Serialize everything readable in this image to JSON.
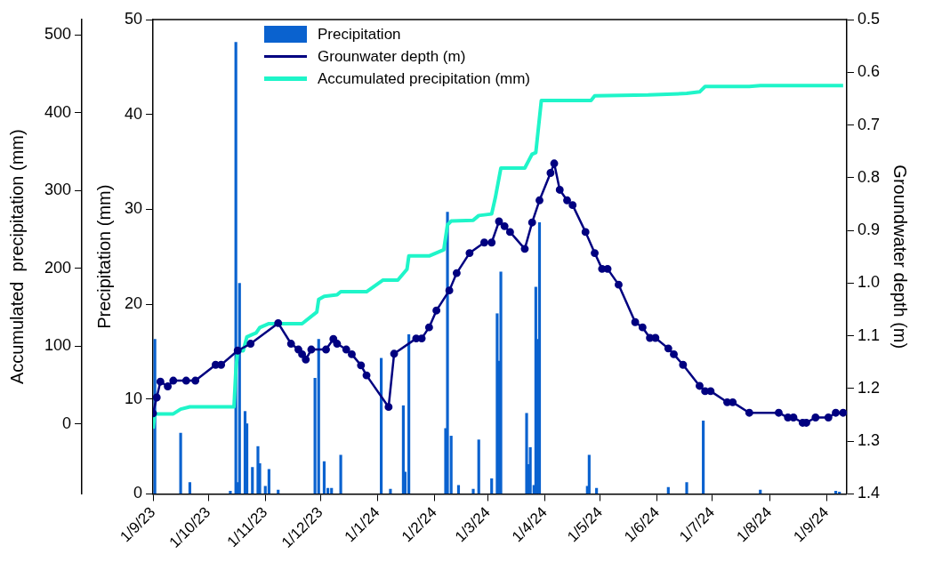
{
  "chart_data": {
    "type": "bar",
    "ylabel": "Precipitation (mm)",
    "y2label": "Groundwater depth (m)",
    "y3label": "Accumulated  precipitation (mm)",
    "xlim": [
      "2023-09-01",
      "2024-09-12"
    ],
    "xticks": [
      {
        "value": "2023-09-01",
        "label": "1/9/23"
      },
      {
        "value": "2023-10-01",
        "label": "1/10/23"
      },
      {
        "value": "2023-11-01",
        "label": "1/11/23"
      },
      {
        "value": "2023-12-01",
        "label": "1/12/23"
      },
      {
        "value": "2024-01-01",
        "label": "1/1/24"
      },
      {
        "value": "2024-02-01",
        "label": "1/2/24"
      },
      {
        "value": "2024-03-01",
        "label": "1/3/24"
      },
      {
        "value": "2024-04-01",
        "label": "1/4/24"
      },
      {
        "value": "2024-05-01",
        "label": "1/5/24"
      },
      {
        "value": "2024-06-01",
        "label": "1/6/24"
      },
      {
        "value": "2024-07-01",
        "label": "1/7/24"
      },
      {
        "value": "2024-08-01",
        "label": "1/8/24"
      },
      {
        "value": "2024-09-01",
        "label": "1/9/24"
      }
    ],
    "ylim": [
      0,
      50
    ],
    "yticks": [
      0,
      10,
      20,
      30,
      40,
      50
    ],
    "y2lim": [
      1.4,
      0.5
    ],
    "y2ticks": [
      {
        "value": 0.5,
        "label": "0.5"
      },
      {
        "value": 0.6,
        "label": "0.6"
      },
      {
        "value": 0.7,
        "label": "0.7"
      },
      {
        "value": 0.8,
        "label": "0.8"
      },
      {
        "value": 0.9,
        "label": "0.9"
      },
      {
        "value": 1,
        "label": "1.0"
      },
      {
        "value": 1.1,
        "label": "1.1"
      },
      {
        "value": 1.2,
        "label": "1.2"
      },
      {
        "value": 1.3,
        "label": "1.3"
      },
      {
        "value": 1.4,
        "label": "1.4"
      }
    ],
    "y3lim": [
      -90,
      520
    ],
    "y3ticks": [
      0,
      100,
      200,
      300,
      400,
      500
    ],
    "grid": false,
    "legend": "top left",
    "series": [
      {
        "name": "Precipitation",
        "color": "#0a62cf",
        "x": [
          "2023-09-02",
          "2023-09-16",
          "2023-09-21",
          "2023-10-13",
          "2023-10-16",
          "2023-10-17",
          "2023-10-18",
          "2023-10-21",
          "2023-10-22",
          "2023-10-25",
          "2023-10-28",
          "2023-10-29",
          "2023-11-01",
          "2023-11-03",
          "2023-11-08",
          "2023-11-28",
          "2023-11-30",
          "2023-12-03",
          "2023-12-05",
          "2023-12-07",
          "2023-12-12",
          "2024-01-03",
          "2024-01-08",
          "2024-01-15",
          "2024-01-16",
          "2024-01-18",
          "2024-02-07",
          "2024-02-08",
          "2024-02-10",
          "2024-02-14",
          "2024-02-22",
          "2024-02-25",
          "2024-03-03",
          "2024-03-06",
          "2024-03-07",
          "2024-03-08",
          "2024-03-22",
          "2024-03-23",
          "2024-03-24",
          "2024-03-26",
          "2024-03-27",
          "2024-03-28",
          "2024-03-29",
          "2024-04-24",
          "2024-04-25",
          "2024-04-29",
          "2024-06-07",
          "2024-06-17",
          "2024-06-26",
          "2024-07-27",
          "2024-09-06",
          "2024-09-08"
        ],
        "values": [
          16.3,
          6.4,
          1.2,
          0.3,
          47.6,
          1.2,
          22.2,
          8.7,
          7.4,
          2.8,
          5.0,
          3.2,
          0.8,
          2.6,
          0.4,
          12.2,
          16.3,
          3.4,
          0.6,
          0.6,
          4.1,
          14.3,
          0.5,
          9.3,
          2.3,
          16.8,
          6.9,
          29.7,
          6.1,
          0.9,
          0.5,
          5.7,
          1.6,
          19.0,
          14.0,
          23.4,
          8.5,
          3.1,
          4.9,
          0.9,
          21.8,
          16.3,
          28.6,
          0.8,
          4.1,
          0.6,
          0.7,
          1.2,
          7.7,
          0.4,
          0.3,
          0.2
        ]
      },
      {
        "name": "Grounwater depth (m)",
        "type": "line",
        "axis": "y2",
        "color": "#000080",
        "marker": "circle",
        "x": [
          "2023-09-01",
          "2023-09-03",
          "2023-09-05",
          "2023-09-09",
          "2023-09-12",
          "2023-09-19",
          "2023-09-24",
          "2023-10-05",
          "2023-10-08",
          "2023-10-17",
          "2023-10-24",
          "2023-11-08",
          "2023-11-15",
          "2023-11-19",
          "2023-11-21",
          "2023-11-23",
          "2023-11-26",
          "2023-12-04",
          "2023-12-08",
          "2023-12-10",
          "2023-12-15",
          "2023-12-18",
          "2023-12-23",
          "2023-12-26",
          "2024-01-07",
          "2024-01-10",
          "2024-01-22",
          "2024-01-25",
          "2024-01-29",
          "2024-02-02",
          "2024-02-09",
          "2024-02-13",
          "2024-02-20",
          "2024-02-28",
          "2024-03-03",
          "2024-03-07",
          "2024-03-10",
          "2024-03-13",
          "2024-03-21",
          "2024-03-25",
          "2024-03-29",
          "2024-04-04",
          "2024-04-06",
          "2024-04-09",
          "2024-04-13",
          "2024-04-16",
          "2024-04-23",
          "2024-04-28",
          "2024-05-02",
          "2024-05-05",
          "2024-05-11",
          "2024-05-20",
          "2024-05-24",
          "2024-05-28",
          "2024-05-31",
          "2024-06-07",
          "2024-06-10",
          "2024-06-15",
          "2024-06-24",
          "2024-06-27",
          "2024-06-30",
          "2024-07-09",
          "2024-07-12",
          "2024-07-21",
          "2024-08-06",
          "2024-08-11",
          "2024-08-14",
          "2024-08-19",
          "2024-08-21",
          "2024-08-26",
          "2024-09-02",
          "2024-09-06",
          "2024-09-10"
        ],
        "values": [
          1.247,
          1.217,
          1.187,
          1.196,
          1.185,
          1.185,
          1.185,
          1.155,
          1.155,
          1.128,
          1.115,
          1.076,
          1.115,
          1.126,
          1.135,
          1.145,
          1.126,
          1.126,
          1.106,
          1.115,
          1.126,
          1.135,
          1.156,
          1.175,
          1.235,
          1.134,
          1.105,
          1.105,
          1.084,
          1.052,
          1.014,
          0.981,
          0.943,
          0.923,
          0.923,
          0.883,
          0.892,
          0.903,
          0.935,
          0.885,
          0.843,
          0.791,
          0.773,
          0.823,
          0.843,
          0.852,
          0.903,
          0.943,
          0.973,
          0.973,
          1.003,
          1.074,
          1.084,
          1.104,
          1.104,
          1.124,
          1.135,
          1.155,
          1.195,
          1.205,
          1.205,
          1.226,
          1.226,
          1.246,
          1.246,
          1.255,
          1.255,
          1.265,
          1.265,
          1.255,
          1.255,
          1.246,
          1.246
        ]
      },
      {
        "name": "Accumulated precipitation (mm)",
        "type": "line",
        "axis": "y3",
        "color": "#1ff5c9",
        "marker": "none",
        "x": [
          "2023-09-01",
          "2023-09-02",
          "2023-09-12",
          "2023-09-16",
          "2023-09-21",
          "2023-10-15",
          "2023-10-16",
          "2023-10-17",
          "2023-10-20",
          "2023-10-22",
          "2023-10-25",
          "2023-10-27",
          "2023-10-29",
          "2023-11-03",
          "2023-11-21",
          "2023-11-29",
          "2023-11-30",
          "2023-12-03",
          "2023-12-10",
          "2023-12-12",
          "2023-12-26",
          "2024-01-04",
          "2024-01-12",
          "2024-01-17",
          "2024-01-18",
          "2024-01-29",
          "2024-02-06",
          "2024-02-08",
          "2024-02-10",
          "2024-02-22",
          "2024-02-25",
          "2024-03-03",
          "2024-03-05",
          "2024-03-08",
          "2024-03-21",
          "2024-03-23",
          "2024-03-25",
          "2024-03-27",
          "2024-03-30",
          "2024-04-26",
          "2024-04-28",
          "2024-05-27",
          "2024-06-17",
          "2024-06-24",
          "2024-06-27",
          "2024-07-21",
          "2024-07-27",
          "2024-09-10"
        ],
        "values": [
          -6,
          13,
          13,
          19,
          22,
          22,
          69,
          94,
          94,
          112,
          115,
          117,
          124,
          129,
          129,
          144,
          160,
          164,
          166,
          170,
          170,
          185,
          185,
          199,
          216,
          216,
          224,
          256,
          261,
          262,
          268,
          270,
          291,
          329,
          329,
          338,
          347,
          349,
          416,
          416,
          422,
          423,
          425,
          427,
          434,
          434,
          435,
          435
        ]
      }
    ]
  }
}
